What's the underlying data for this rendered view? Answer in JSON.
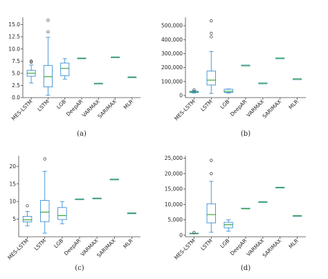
{
  "chart_data": [
    {
      "type": "box",
      "panel_label": "(a)",
      "categories": [
        "MES-LSTM",
        "LSTM",
        "LGB",
        "DeepAR",
        "VARMAX",
        "SARIMAX",
        "MLR"
      ],
      "ylim": [
        0,
        16.5
      ],
      "yticks": [
        0.0,
        2.5,
        5.0,
        7.5,
        10.0,
        12.5,
        15.0
      ],
      "ytick_labels": [
        "0.0",
        "2.5",
        "5.0",
        "7.5",
        "10.0",
        "12.5",
        "15.0"
      ],
      "boxes": [
        {
          "whislo": 3.0,
          "q1": 4.4,
          "med": 5.0,
          "q3": 5.6,
          "whishi": 6.7,
          "fliers": [
            7.3,
            7.5
          ]
        },
        {
          "whislo": 0.5,
          "q1": 2.2,
          "med": 4.3,
          "q3": 6.6,
          "whishi": 12.4,
          "fliers": [
            13.5,
            15.9
          ]
        },
        {
          "whislo": 3.8,
          "q1": 4.5,
          "med": 6.0,
          "q3": 7.1,
          "whishi": 8.0,
          "fliers": []
        },
        {
          "whislo": 7.9,
          "q1": 8.0,
          "med": 8.05,
          "q3": 8.1,
          "whishi": 8.15,
          "fliers": []
        },
        {
          "whislo": 2.9,
          "q1": 2.9,
          "med": 2.9,
          "q3": 2.9,
          "whishi": 2.9,
          "fliers": []
        },
        {
          "whislo": 8.3,
          "q1": 8.3,
          "med": 8.3,
          "q3": 8.3,
          "whishi": 8.3,
          "fliers": []
        },
        {
          "whislo": 4.2,
          "q1": 4.2,
          "med": 4.2,
          "q3": 4.2,
          "whishi": 4.2,
          "fliers": []
        }
      ]
    },
    {
      "type": "box",
      "panel_label": "(b)",
      "categories": [
        "MES-LSTM",
        "LSTM",
        "LGB",
        "DeepAR",
        "VARMAX",
        "SARIMAX",
        "MLR"
      ],
      "ylim": [
        -15000,
        560000
      ],
      "yticks": [
        0,
        100000,
        200000,
        300000,
        400000,
        500000
      ],
      "ytick_labels": [
        "0",
        "100,000",
        "200,000",
        "300,000",
        "400,000",
        "500,000"
      ],
      "boxes": [
        {
          "whislo": 18000,
          "q1": 22000,
          "med": 26000,
          "q3": 30000,
          "whishi": 36000,
          "fliers": [
            40000
          ]
        },
        {
          "whislo": 15000,
          "q1": 75000,
          "med": 110000,
          "q3": 175000,
          "whishi": 315000,
          "fliers": [
            420000,
            445000,
            535000
          ]
        },
        {
          "whislo": 18000,
          "q1": 22000,
          "med": 30000,
          "q3": 45000,
          "whishi": 47000,
          "fliers": []
        },
        {
          "whislo": 210000,
          "q1": 212000,
          "med": 214000,
          "q3": 216000,
          "whishi": 218000,
          "fliers": []
        },
        {
          "whislo": 88000,
          "q1": 88000,
          "med": 88000,
          "q3": 88000,
          "whishi": 88000,
          "fliers": []
        },
        {
          "whislo": 267000,
          "q1": 267000,
          "med": 267000,
          "q3": 267000,
          "whishi": 267000,
          "fliers": []
        },
        {
          "whislo": 118000,
          "q1": 118000,
          "med": 118000,
          "q3": 118000,
          "whishi": 118000,
          "fliers": []
        }
      ]
    },
    {
      "type": "box",
      "panel_label": "(c)",
      "categories": [
        "MES-LSTM",
        "LSTM",
        "LGB",
        "DeepAR",
        "VARMAX",
        "SARIMAX",
        "MLR"
      ],
      "ylim": [
        0,
        23
      ],
      "yticks": [
        5,
        10,
        15,
        20
      ],
      "ytick_labels": [
        "5",
        "10",
        "15",
        "20"
      ],
      "boxes": [
        {
          "whislo": 3.1,
          "q1": 4.2,
          "med": 4.8,
          "q3": 5.8,
          "whishi": 7.2,
          "fliers": [
            8.8
          ]
        },
        {
          "whislo": 1.0,
          "q1": 4.3,
          "med": 7.0,
          "q3": 10.3,
          "whishi": 18.6,
          "fliers": [
            22.1
          ]
        },
        {
          "whislo": 3.7,
          "q1": 4.9,
          "med": 6.0,
          "q3": 8.3,
          "whishi": 10.0,
          "fliers": []
        },
        {
          "whislo": 10.4,
          "q1": 10.5,
          "med": 10.6,
          "q3": 10.7,
          "whishi": 10.8,
          "fliers": []
        },
        {
          "whislo": 10.9,
          "q1": 10.9,
          "med": 10.9,
          "q3": 10.9,
          "whishi": 10.9,
          "fliers": []
        },
        {
          "whislo": 16.3,
          "q1": 16.3,
          "med": 16.3,
          "q3": 16.3,
          "whishi": 16.3,
          "fliers": []
        },
        {
          "whislo": 6.7,
          "q1": 6.7,
          "med": 6.7,
          "q3": 6.7,
          "whishi": 6.7,
          "fliers": []
        }
      ]
    },
    {
      "type": "box",
      "panel_label": "(d)",
      "categories": [
        "MES-LSTM",
        "LSTM",
        "LGB",
        "DeepAR",
        "VARMAX",
        "SARIMAX",
        "MLR"
      ],
      "ylim": [
        -500,
        25800
      ],
      "yticks": [
        0,
        5000,
        10000,
        15000,
        20000,
        25000
      ],
      "ytick_labels": [
        "0",
        "5,000",
        "10,000",
        "15,000",
        "20,000",
        "25,000"
      ],
      "boxes": [
        {
          "whislo": 200,
          "q1": 350,
          "med": 500,
          "q3": 650,
          "whishi": 800,
          "fliers": [
            900
          ]
        },
        {
          "whislo": 1000,
          "q1": 4000,
          "med": 6700,
          "q3": 10200,
          "whishi": 17500,
          "fliers": [
            20000,
            24300
          ]
        },
        {
          "whislo": 1300,
          "q1": 2400,
          "med": 3400,
          "q3": 4200,
          "whishi": 5000,
          "fliers": []
        },
        {
          "whislo": 8300,
          "q1": 8450,
          "med": 8600,
          "q3": 8750,
          "whishi": 8900,
          "fliers": []
        },
        {
          "whislo": 10800,
          "q1": 10800,
          "med": 10800,
          "q3": 10800,
          "whishi": 10800,
          "fliers": []
        },
        {
          "whislo": 15500,
          "q1": 15500,
          "med": 15500,
          "q3": 15500,
          "whishi": 15500,
          "fliers": []
        },
        {
          "whislo": 6300,
          "q1": 6300,
          "med": 6300,
          "q3": 6300,
          "whishi": 6300,
          "fliers": []
        }
      ]
    }
  ],
  "colors": {
    "box": "#3a8fd6",
    "median": "#2ca02c",
    "flier": "#333333",
    "axis": "#444444"
  }
}
